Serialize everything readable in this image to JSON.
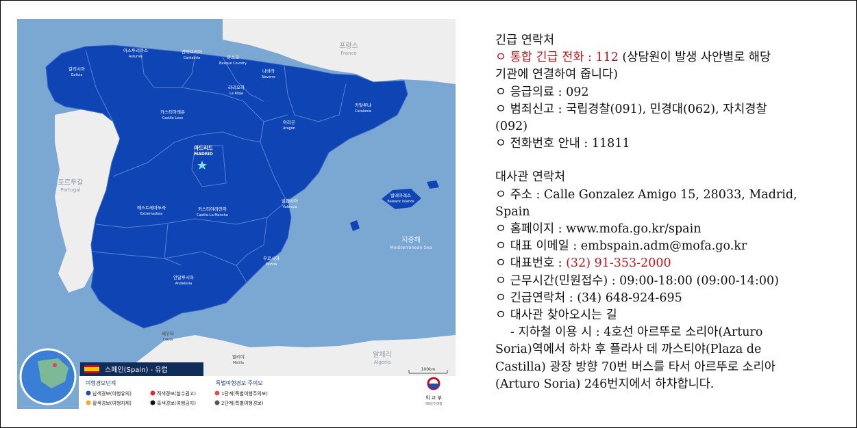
{
  "map": {
    "regions": [
      {
        "ko": "갈리시아",
        "en": "Galicia"
      },
      {
        "ko": "아스투리아스",
        "en": "Asturias"
      },
      {
        "ko": "칸타브리아",
        "en": "Cantabria"
      },
      {
        "ko": "바스크",
        "en": "Basque Country"
      },
      {
        "ko": "나바라",
        "en": "Navarre"
      },
      {
        "ko": "라리오하",
        "en": "La Rioja"
      },
      {
        "ko": "카탈루냐",
        "en": "Catalonia"
      },
      {
        "ko": "아라곤",
        "en": "Aragon"
      },
      {
        "ko": "카스티아레온",
        "en": "Castile Leon"
      },
      {
        "ko": "마드리드",
        "en": "MADRID"
      },
      {
        "ko": "에스트레마두라",
        "en": "Extremadura"
      },
      {
        "ko": "카스티야라만차",
        "en": "Castile-La Mancha"
      },
      {
        "ko": "발렌시아",
        "en": "Valencia"
      },
      {
        "ko": "발레아레스",
        "en": "Balearic Islands"
      },
      {
        "ko": "무르시아",
        "en": "Murcia"
      },
      {
        "ko": "안달루시아",
        "en": "Andalusia"
      },
      {
        "ko": "세우타",
        "en": "Ceuta"
      },
      {
        "ko": "멜리야",
        "en": "Melilla"
      }
    ],
    "neighbors": [
      {
        "ko": "프랑스",
        "en": "France"
      },
      {
        "ko": "포르투갈",
        "en": "Portugal"
      },
      {
        "ko": "알제리",
        "en": "Algeria"
      }
    ],
    "sea": {
      "ko": "지중해",
      "en": "Mediterranean Sea"
    },
    "scale": "100km",
    "title": "스페인(Spain) - 유럽",
    "legend_title_1": "여행경보단계",
    "legend_title_2": "특별여행경보·주의보",
    "legend": [
      {
        "label": "남색경보(여행유의)",
        "color": "#1f4ea3"
      },
      {
        "label": "적색경보(철수권고)",
        "color": "#d82d2d"
      },
      {
        "label": "1단계(특별여행주의보)",
        "color": "#e0525a"
      },
      {
        "label": "황색경보(여행자제)",
        "color": "#f3a92b"
      },
      {
        "label": "흑색경보(여행금지)",
        "color": "#111111"
      },
      {
        "label": "2단계(특별여행경보)",
        "color": "#555555"
      }
    ],
    "ministry": "외 교 부",
    "ministry_sub": "해외안전여행",
    "colors": {
      "spain": "#0f44b4",
      "sea": "#7ba7d3",
      "land": "#eeeeee"
    }
  },
  "info": {
    "emergency_title": "긴급 연락처",
    "bullet": "ㅇ",
    "line1_red": "통합 긴급 전화 : 112",
    "line1_rest": " (상담원이 발생 사안별로 해당",
    "line1_cont": "기관에 연결하여 줍니다)",
    "line2": "응급의료 : 092",
    "line3": "범죄신고 : 국립경찰(091), 민경대(062), 자치경찰",
    "line3_cont": "(092)",
    "line4": "전화번호 안내 : 11811",
    "embassy_title": "대사관 연락처",
    "line5": "주소 : Calle Gonzalez Amigo 15, 28033, Madrid,",
    "line5_cont": "Spain",
    "line6": "홈페이지 : www.mofa.go.kr/spain",
    "line7": "대표 이메일 : embspain.adm@mofa.go.kr",
    "line8_label": "대표번호 : ",
    "line8_red": "(32) 91-353-2000",
    "line9": "근무시간(민원접수) : 09:00-18:00 (09:00-14:00)",
    "line10": "긴급연락처 : (34) 648-924-695",
    "line11": "대사관 찾아오시는 길",
    "line12": "- 지하철 이용 시 : 4호선 아르뚜로 소리아(Arturo",
    "line12_cont1": "Soria)역에서 하차 후 플라사 데 까스티야(Plaza de",
    "line12_cont2": "Castilla) 광장 방향 70번 버스를 타서 아르뚜로 소리아",
    "line12_cont3": "(Arturo Soria) 246번지에서 하차합니다."
  }
}
